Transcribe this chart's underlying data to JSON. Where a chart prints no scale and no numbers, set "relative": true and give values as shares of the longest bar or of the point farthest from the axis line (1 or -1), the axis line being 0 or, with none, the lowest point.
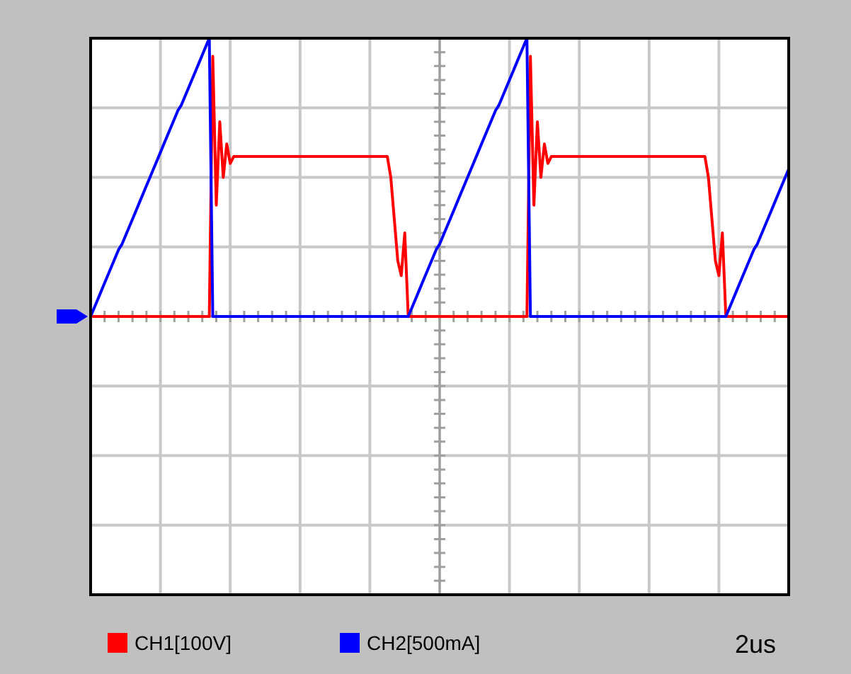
{
  "chart_data": {
    "type": "line",
    "relative": true,
    "categories": [
      null,
      null,
      null,
      null,
      null,
      null,
      null,
      null,
      null,
      null,
      null,
      null,
      null,
      null,
      null,
      null,
      null,
      null,
      null,
      null,
      null,
      null,
      null,
      null,
      null,
      null,
      null,
      null,
      null,
      null,
      null,
      null,
      null,
      null,
      null,
      null,
      null,
      null,
      null,
      null,
      null,
      null,
      null,
      null,
      null,
      null,
      null,
      null,
      null,
      null,
      null,
      null,
      null,
      null,
      null,
      null,
      null,
      null,
      null,
      null,
      null,
      null,
      null,
      null,
      null,
      null,
      null,
      null,
      null,
      null,
      null,
      null,
      null,
      null,
      null,
      null,
      null,
      null,
      null,
      null,
      null,
      null,
      null,
      null,
      null,
      null,
      null,
      null,
      null,
      null,
      null,
      null,
      null,
      null,
      null,
      null,
      null,
      null,
      null,
      null,
      null,
      null,
      null,
      null,
      null,
      null,
      null,
      null,
      null,
      null,
      null,
      null,
      null,
      null,
      null,
      null,
      null,
      null,
      null,
      null,
      null,
      null,
      null,
      null,
      null,
      null,
      null,
      null,
      null,
      null,
      null,
      null,
      null,
      null,
      null,
      null,
      null,
      null,
      null,
      null,
      null,
      null,
      null,
      null,
      null,
      null,
      null,
      null,
      null,
      null,
      null,
      null,
      null,
      null,
      null,
      null,
      null,
      null,
      null,
      null,
      null,
      null,
      null,
      null,
      null,
      null,
      null,
      null,
      null,
      null,
      null,
      null,
      null,
      null,
      null,
      null,
      null,
      null,
      null,
      null,
      null,
      null,
      null,
      null,
      null,
      null,
      null,
      null,
      null,
      null,
      null,
      null,
      null,
      null,
      null,
      null,
      null,
      null,
      null,
      null,
      null
    ],
    "grid": true,
    "legend": "bottom",
    "line_style": "solid",
    "annotations": [
      "2us"
    ],
    "series": [
      {
        "name": "CH1[100V]",
        "color": "#ff0000",
        "values": [
          0,
          0,
          0,
          0,
          0,
          0,
          0,
          0,
          0,
          0,
          0,
          0,
          0,
          0,
          0,
          0,
          0,
          0,
          0,
          0,
          0,
          0,
          0,
          0,
          0,
          0,
          0,
          0,
          0,
          0,
          0,
          0,
          0,
          0,
          0,
          0.935,
          0.4,
          0.7,
          0.5,
          0.62,
          0.55,
          0.575,
          0.575,
          0.575,
          0.575,
          0.575,
          0.575,
          0.575,
          0.575,
          0.575,
          0.575,
          0.575,
          0.575,
          0.575,
          0.575,
          0.575,
          0.575,
          0.575,
          0.575,
          0.575,
          0.575,
          0.575,
          0.575,
          0.575,
          0.575,
          0.575,
          0.575,
          0.575,
          0.575,
          0.575,
          0.575,
          0.575,
          0.575,
          0.575,
          0.575,
          0.575,
          0.575,
          0.575,
          0.575,
          0.575,
          0.575,
          0.575,
          0.575,
          0.575,
          0.575,
          0.575,
          0.5,
          0.35,
          0.2,
          0.147,
          0.3,
          0,
          0,
          0,
          0,
          0,
          0,
          0,
          0,
          0,
          0,
          0,
          0,
          0,
          0,
          0,
          0,
          0,
          0,
          0,
          0,
          0,
          0,
          0,
          0,
          0,
          0,
          0,
          0,
          0,
          0,
          0,
          0,
          0,
          0,
          0,
          0.935,
          0.4,
          0.7,
          0.5,
          0.62,
          0.55,
          0.575,
          0.575,
          0.575,
          0.575,
          0.575,
          0.575,
          0.575,
          0.575,
          0.575,
          0.575,
          0.575,
          0.575,
          0.575,
          0.575,
          0.575,
          0.575,
          0.575,
          0.575,
          0.575,
          0.575,
          0.575,
          0.575,
          0.575,
          0.575,
          0.575,
          0.575,
          0.575,
          0.575,
          0.575,
          0.575,
          0.575,
          0.575,
          0.575,
          0.575,
          0.575,
          0.575,
          0.575,
          0.575,
          0.575,
          0.575,
          0.575,
          0.575,
          0.575,
          0.575,
          0.575,
          0.5,
          0.35,
          0.2,
          0.147,
          0.3,
          0,
          0,
          0,
          0,
          0,
          0,
          0,
          0,
          0,
          0,
          0,
          0,
          0,
          0,
          0,
          0,
          0,
          0,
          0
        ]
      },
      {
        "name": "CH2[500mA]",
        "color": "#0000ff",
        "values": [
          0,
          0.03,
          0.06,
          0.09,
          0.12,
          0.15,
          0.18,
          0.21,
          0.24,
          0.26,
          0.29,
          0.32,
          0.35,
          0.38,
          0.41,
          0.44,
          0.47,
          0.5,
          0.53,
          0.56,
          0.59,
          0.62,
          0.65,
          0.68,
          0.71,
          0.74,
          0.76,
          0.79,
          0.82,
          0.85,
          0.88,
          0.91,
          0.94,
          0.97,
          1,
          0,
          0,
          0,
          0,
          0,
          0,
          0,
          0,
          0,
          0,
          0,
          0,
          0,
          0,
          0,
          0,
          0,
          0,
          0,
          0,
          0,
          0,
          0,
          0,
          0,
          0,
          0,
          0,
          0,
          0,
          0,
          0,
          0,
          0,
          0,
          0,
          0,
          0,
          0,
          0,
          0,
          0,
          0,
          0,
          0,
          0,
          0,
          0,
          0,
          0,
          0,
          0,
          0,
          0,
          0,
          0,
          0,
          0.03,
          0.06,
          0.09,
          0.12,
          0.15,
          0.18,
          0.21,
          0.24,
          0.26,
          0.29,
          0.32,
          0.35,
          0.38,
          0.41,
          0.44,
          0.47,
          0.5,
          0.53,
          0.56,
          0.59,
          0.62,
          0.65,
          0.68,
          0.71,
          0.74,
          0.76,
          0.79,
          0.82,
          0.85,
          0.88,
          0.91,
          0.94,
          0.97,
          1,
          0,
          0,
          0,
          0,
          0,
          0,
          0,
          0,
          0,
          0,
          0,
          0,
          0,
          0,
          0,
          0,
          0,
          0,
          0,
          0,
          0,
          0,
          0,
          0,
          0,
          0,
          0,
          0,
          0,
          0,
          0,
          0,
          0,
          0,
          0,
          0,
          0,
          0,
          0,
          0,
          0,
          0,
          0,
          0,
          0,
          0,
          0,
          0,
          0,
          0,
          0,
          0,
          0,
          0,
          0,
          0,
          0,
          0.03,
          0.06,
          0.09,
          0.12,
          0.15,
          0.18,
          0.21,
          0.24,
          0.26,
          0.29,
          0.32,
          0.35,
          0.38,
          0.41,
          0.44,
          0.47,
          0.5,
          0.53
        ]
      }
    ]
  }
}
